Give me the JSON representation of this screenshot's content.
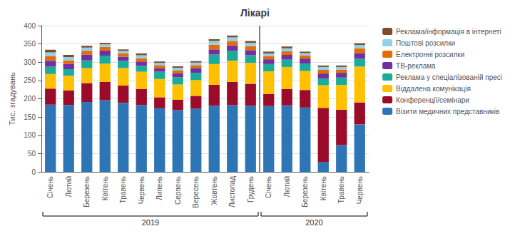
{
  "chart_data": {
    "type": "bar",
    "stacked": true,
    "title": "Лікарі",
    "ylabel": "Тис. згадувань",
    "categories": [
      "Січень",
      "Лютий",
      "Березень",
      "Квітень",
      "Травень",
      "Червень",
      "Липень",
      "Серпень",
      "Вересень",
      "Жовтень",
      "Листопад",
      "Грудень",
      "Січень",
      "Лютий",
      "Березень",
      "Квітень",
      "Травень",
      "Червень"
    ],
    "annotations": [
      {
        "text": "2019",
        "categories": [
          "Січень",
          "Лютий",
          "Березень",
          "Квітень",
          "Травень",
          "Червень",
          "Липень",
          "Серпень",
          "Вересень",
          "Жовтень",
          "Листопад",
          "Грудень"
        ]
      },
      {
        "text": "2020",
        "categories": [
          "Січень",
          "Лютий",
          "Березень",
          "Квітень",
          "Травень",
          "Червень"
        ]
      }
    ],
    "series": [
      {
        "name": "Візити медичних представників",
        "color": "#2e75b6",
        "values": [
          184,
          183,
          191,
          196,
          189,
          183,
          174,
          169,
          173,
          181,
          183,
          181,
          180,
          182,
          176,
          27,
          73,
          130
        ]
      },
      {
        "name": "Конференції/семінари",
        "color": "#9b0c2b",
        "values": [
          44,
          40,
          52,
          50,
          47,
          44,
          30,
          28,
          35,
          57,
          63,
          60,
          33,
          45,
          48,
          148,
          97,
          60
        ]
      },
      {
        "name": "Віддалена комунікація",
        "color": "#ffc000",
        "values": [
          40,
          40,
          41,
          50,
          48,
          47,
          50,
          42,
          43,
          57,
          58,
          57,
          62,
          60,
          52,
          62,
          68,
          98
        ]
      },
      {
        "name": "Реклама у спеціалізованій пресі",
        "color": "#1aab9b",
        "values": [
          20,
          18,
          21,
          22,
          20,
          16,
          20,
          20,
          20,
          26,
          27,
          21,
          20,
          20,
          20,
          18,
          20,
          22
        ]
      },
      {
        "name": "ТВ-реклама",
        "color": "#7030a0",
        "values": [
          16,
          14,
          16,
          14,
          11,
          12,
          10,
          11,
          13,
          14,
          15,
          14,
          13,
          13,
          14,
          14,
          13,
          15
        ]
      },
      {
        "name": "Електронні розсилки",
        "color": "#e36c09",
        "values": [
          12,
          10,
          10,
          10,
          9,
          9,
          8,
          8,
          8,
          13,
          12,
          11,
          9,
          10,
          9,
          10,
          9,
          13
        ]
      },
      {
        "name": "Поштові розсилки",
        "color": "#92d0e8",
        "values": [
          11,
          9,
          9,
          7,
          7,
          8,
          6,
          7,
          7,
          10,
          10,
          9,
          7,
          8,
          6,
          8,
          7,
          9
        ]
      },
      {
        "name": "Реклама/інформація в інтернеті",
        "color": "#7b4f2e",
        "values": [
          7,
          6,
          5,
          4,
          4,
          5,
          4,
          4,
          4,
          5,
          5,
          5,
          5,
          5,
          4,
          4,
          4,
          5
        ]
      }
    ],
    "ylim": [
      0,
      400
    ],
    "yticks": [
      0,
      50,
      100,
      150,
      200,
      250,
      300,
      350,
      400
    ],
    "grid": true,
    "legend": "right"
  }
}
